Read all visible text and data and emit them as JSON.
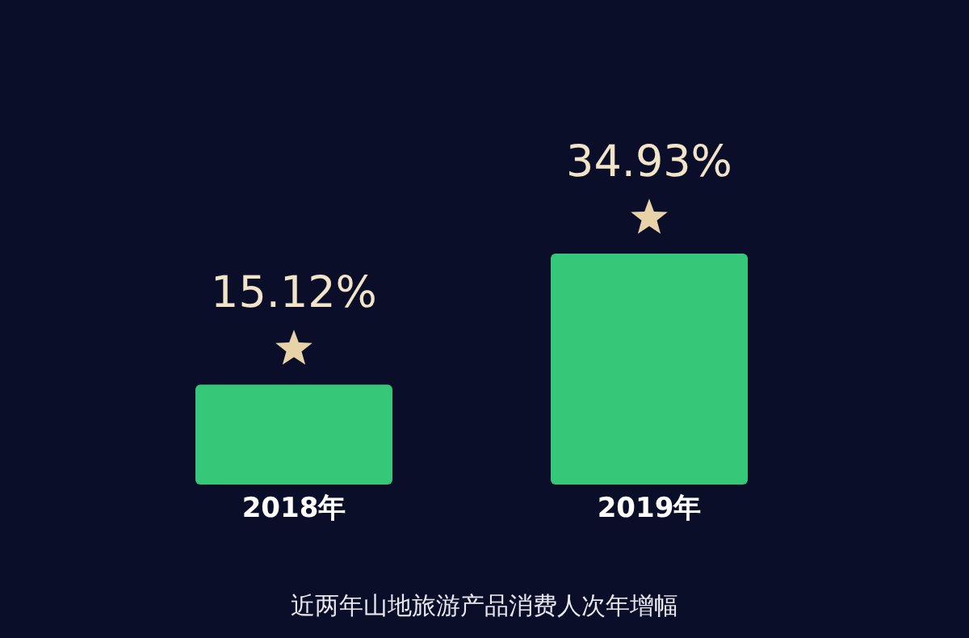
{
  "chart_data": {
    "type": "bar",
    "title": "近两年山地旅游产品消费人次年增幅",
    "categories": [
      "2018年",
      "2019年"
    ],
    "values": [
      15.12,
      34.93
    ],
    "value_labels": [
      "15.12%",
      "34.93%"
    ],
    "color": "#36c878"
  }
}
